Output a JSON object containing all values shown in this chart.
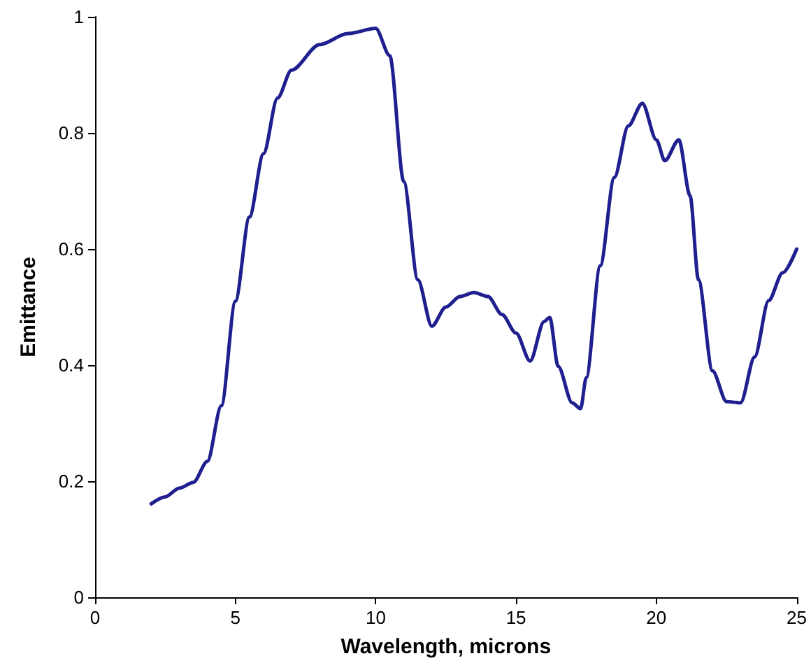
{
  "chart_data": {
    "type": "line",
    "xlabel": "Wavelength, microns",
    "ylabel": "Emittance",
    "x": [
      2,
      2.5,
      3,
      3.5,
      4,
      4.5,
      5,
      5.5,
      6,
      6.5,
      7,
      8,
      9,
      10,
      10.5,
      11,
      11.5,
      12,
      12.5,
      13,
      13.5,
      14,
      14.5,
      15,
      15.5,
      16,
      16.2,
      16.5,
      17,
      17.3,
      17.5,
      18,
      18.5,
      19,
      19.5,
      20,
      20.3,
      20.8,
      21.2,
      21.5,
      22,
      22.5,
      23,
      23.5,
      24,
      24.5,
      25
    ],
    "series": [
      {
        "color": "#1f1f8f",
        "values": [
          0.161,
          0.173,
          0.188,
          0.198,
          0.234,
          0.33,
          0.51,
          0.655,
          0.764,
          0.86,
          0.908,
          0.952,
          0.971,
          0.98,
          0.933,
          0.716,
          0.547,
          0.467,
          0.5,
          0.518,
          0.525,
          0.518,
          0.487,
          0.455,
          0.407,
          0.475,
          0.482,
          0.398,
          0.335,
          0.325,
          0.378,
          0.571,
          0.723,
          0.812,
          0.851,
          0.788,
          0.752,
          0.788,
          0.692,
          0.547,
          0.39,
          0.337,
          0.335,
          0.414,
          0.511,
          0.559,
          0.6
        ]
      }
    ],
    "xlim": [
      0,
      25
    ],
    "xticks": [
      0,
      5,
      10,
      15,
      20,
      25
    ],
    "ylim": [
      0,
      1
    ],
    "yticks": [
      0,
      0.2,
      0.4,
      0.6,
      0.8,
      1
    ],
    "grid": false,
    "marker": "none",
    "line_style": "solid"
  }
}
